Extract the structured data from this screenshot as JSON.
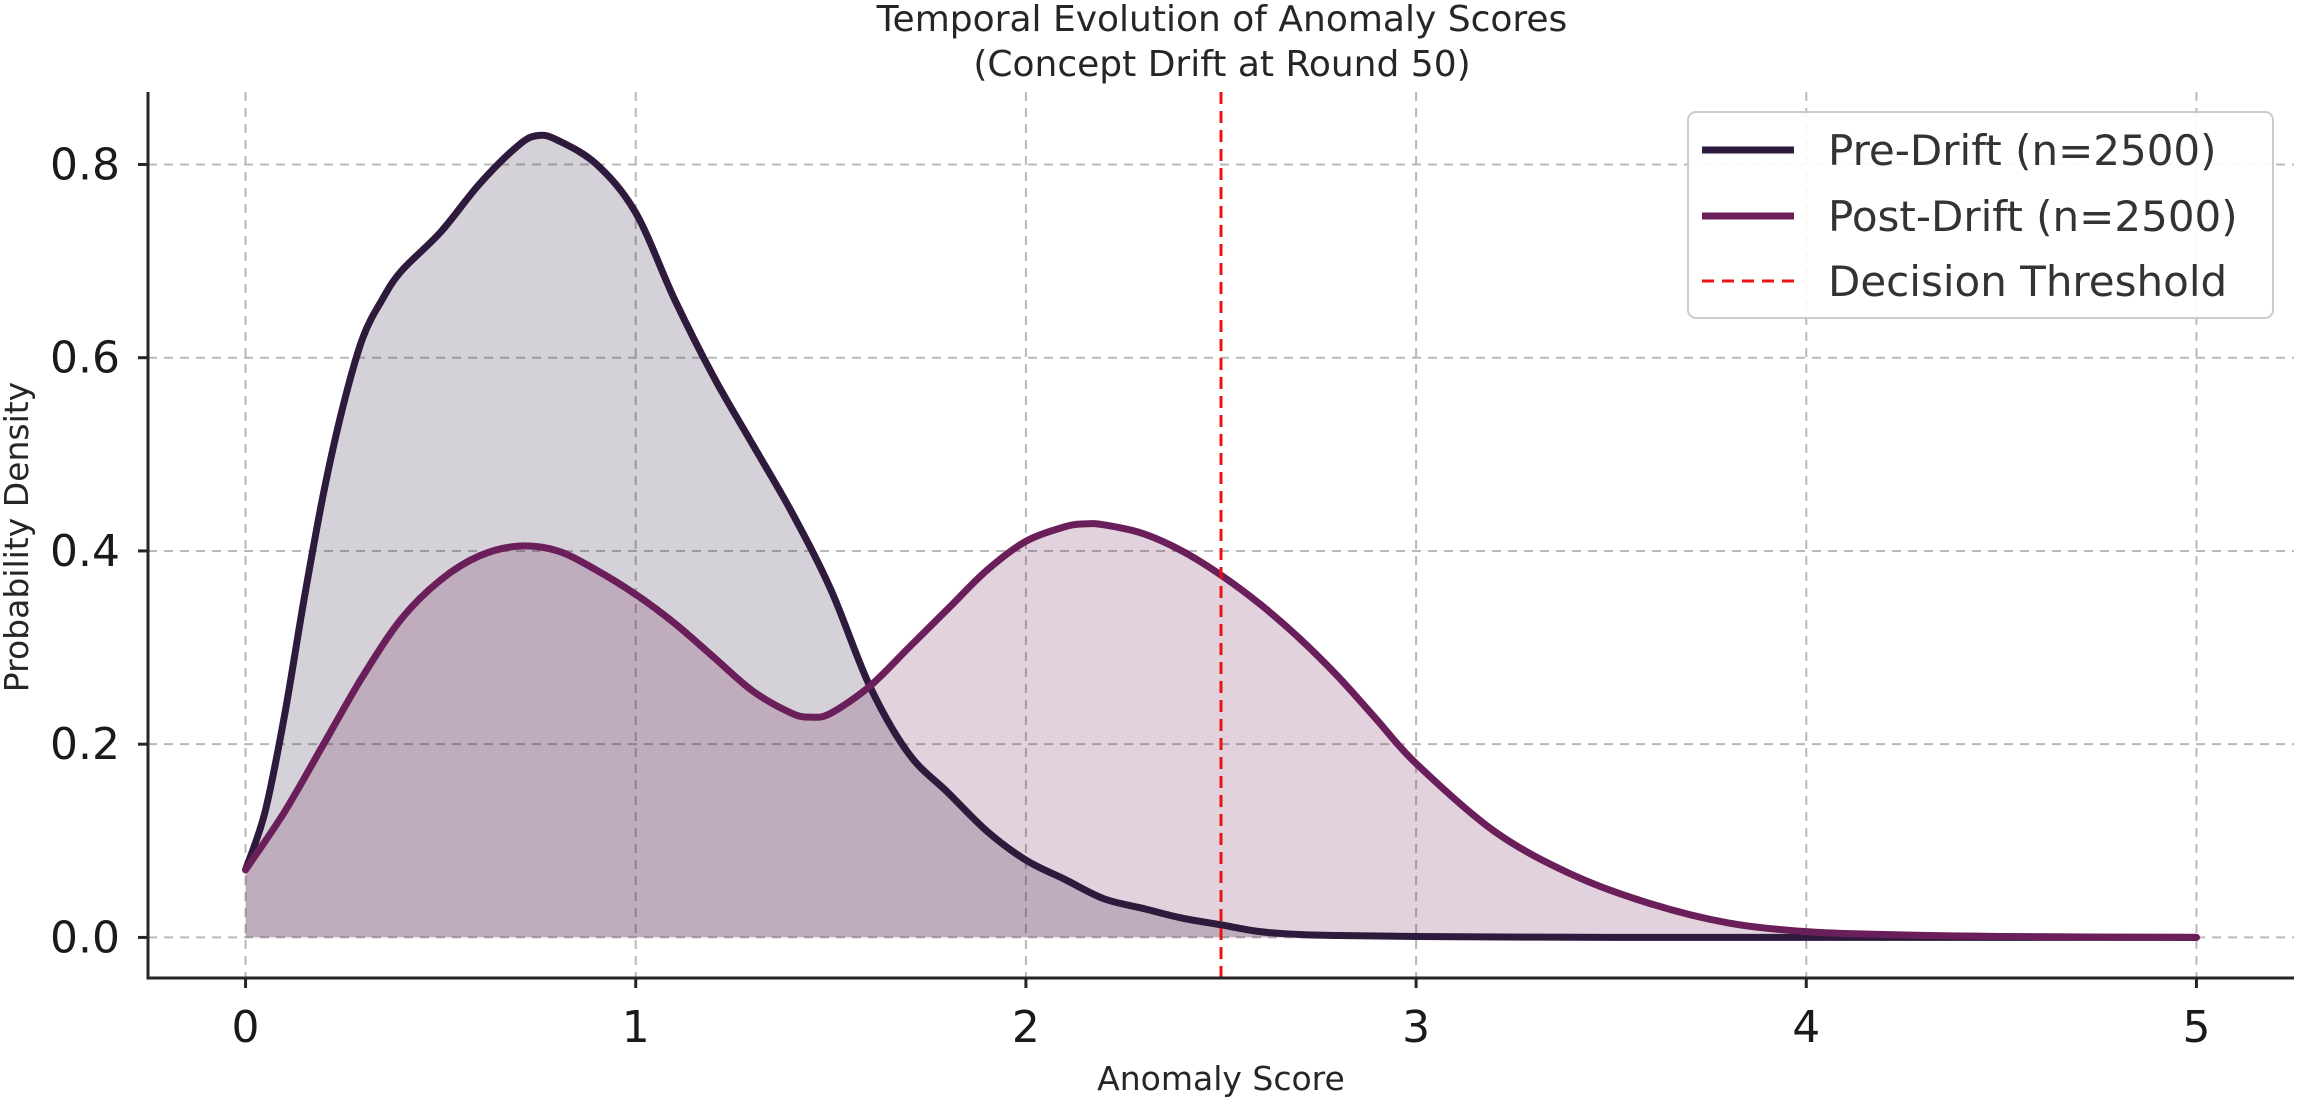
{
  "chart_data": {
    "type": "area",
    "title": "Temporal Evolution of Anomaly Scores",
    "subtitle": "(Concept Drift at Round 50)",
    "xlabel": "Anomaly Score",
    "ylabel": "Probability Density",
    "xlim": [
      -0.25,
      5.25
    ],
    "ylim": [
      -0.042,
      0.875
    ],
    "xticks": [
      0,
      1,
      2,
      3,
      4,
      5
    ],
    "yticks": [
      0.0,
      0.2,
      0.4,
      0.6,
      0.8
    ],
    "xtick_labels": [
      "0",
      "1",
      "2",
      "3",
      "4",
      "5"
    ],
    "ytick_labels": [
      "0.0",
      "0.2",
      "0.4",
      "0.6",
      "0.8"
    ],
    "grid": true,
    "legend_position": "top-right",
    "threshold": {
      "name": "Decision Threshold",
      "x": 2.5,
      "color": "#ee1111"
    },
    "series": [
      {
        "name": "Pre-Drift (n=2500)",
        "color": "#2d1a3c",
        "fill": "#d6d0da",
        "x": [
          0,
          0.05,
          0.1,
          0.15,
          0.2,
          0.25,
          0.3,
          0.35,
          0.4,
          0.5,
          0.6,
          0.7,
          0.75,
          0.8,
          0.9,
          1.0,
          1.1,
          1.2,
          1.3,
          1.4,
          1.5,
          1.6,
          1.7,
          1.8,
          1.9,
          2.0,
          2.1,
          2.2,
          2.3,
          2.4,
          2.5,
          2.6,
          2.7,
          2.8,
          3.0,
          3.5,
          4.0,
          4.5,
          5.0
        ],
        "y": [
          0.07,
          0.13,
          0.23,
          0.35,
          0.46,
          0.55,
          0.62,
          0.66,
          0.69,
          0.73,
          0.78,
          0.82,
          0.83,
          0.825,
          0.8,
          0.75,
          0.66,
          0.58,
          0.51,
          0.44,
          0.36,
          0.26,
          0.19,
          0.15,
          0.11,
          0.08,
          0.06,
          0.04,
          0.03,
          0.02,
          0.013,
          0.006,
          0.003,
          0.002,
          0.001,
          0.0,
          0.0,
          0.0,
          0.0
        ]
      },
      {
        "name": "Post-Drift (n=2500)",
        "color": "#6b1f5a",
        "fill": "#e3d1dd",
        "x": [
          0,
          0.1,
          0.2,
          0.3,
          0.4,
          0.5,
          0.6,
          0.7,
          0.8,
          0.9,
          1.0,
          1.1,
          1.2,
          1.3,
          1.4,
          1.45,
          1.5,
          1.6,
          1.7,
          1.8,
          1.9,
          2.0,
          2.1,
          2.15,
          2.2,
          2.3,
          2.4,
          2.5,
          2.6,
          2.7,
          2.8,
          2.9,
          3.0,
          3.2,
          3.4,
          3.6,
          3.8,
          4.0,
          4.2,
          4.5,
          5.0
        ],
        "y": [
          0.07,
          0.13,
          0.2,
          0.27,
          0.33,
          0.37,
          0.395,
          0.405,
          0.4,
          0.38,
          0.355,
          0.325,
          0.29,
          0.255,
          0.232,
          0.228,
          0.232,
          0.26,
          0.3,
          0.34,
          0.38,
          0.41,
          0.425,
          0.428,
          0.427,
          0.418,
          0.4,
          0.375,
          0.345,
          0.31,
          0.27,
          0.225,
          0.18,
          0.11,
          0.065,
          0.035,
          0.015,
          0.006,
          0.003,
          0.001,
          0.0
        ]
      }
    ]
  }
}
